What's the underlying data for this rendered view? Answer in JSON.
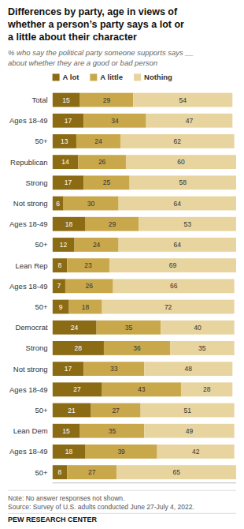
{
  "chart_data": {
    "type": "bar",
    "orientation": "horizontal",
    "stacked": true,
    "data_labels": true,
    "grid": false,
    "legend": "top",
    "tick_labels": "y",
    "title": "Differences by party, age in views of\nwhether a person’s party says a lot or\na little about their character",
    "subtitle": "% who say the political party someone supports says __\nabout whether they are a good or bad person",
    "annotations": [
      "Note: No answer responses not shown.",
      "Source: Survey of U.S. adults conducted June 27-July 4, 2022.",
      "PEW RESEARCH CENTER"
    ],
    "xlim": [
      0,
      100
    ],
    "categories": [
      "Total",
      "Ages 18-49",
      "50+",
      "Republican",
      "Strong",
      "Not strong",
      "Ages 18-49",
      "50+",
      "Lean Rep",
      "Ages 18-49",
      "50+",
      "Democrat",
      "Strong",
      "Not strong",
      "Ages 18-49",
      "50+",
      "Lean Dem",
      "Ages 18-49",
      "50+"
    ],
    "series": [
      {
        "name": "A lot",
        "color": "#8B6B14",
        "values": [
          15,
          17,
          13,
          14,
          17,
          6,
          18,
          12,
          8,
          7,
          9,
          24,
          28,
          17,
          27,
          21,
          15,
          18,
          8
        ]
      },
      {
        "name": "A little",
        "color": "#C9A84C",
        "values": [
          29,
          34,
          24,
          26,
          25,
          30,
          29,
          24,
          23,
          26,
          18,
          35,
          36,
          33,
          43,
          27,
          35,
          39,
          27
        ]
      },
      {
        "name": "Nothing",
        "color": "#E8D49E",
        "values": [
          54,
          47,
          62,
          60,
          58,
          64,
          53,
          64,
          69,
          66,
          72,
          40,
          35,
          48,
          28,
          51,
          49,
          42,
          65
        ]
      }
    ]
  }
}
